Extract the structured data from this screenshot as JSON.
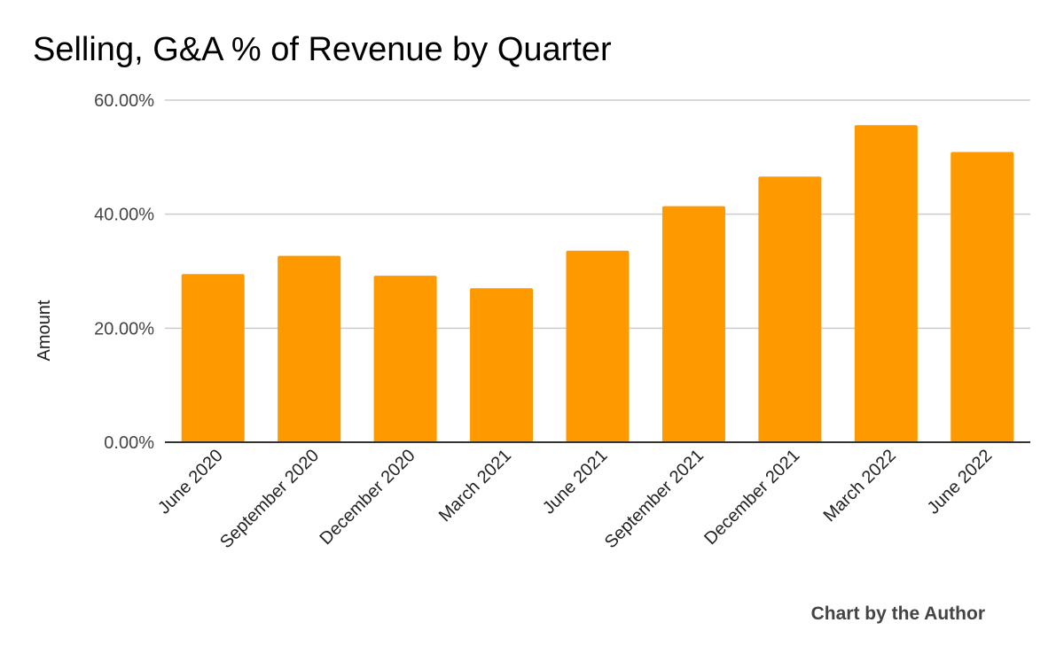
{
  "chart_data": {
    "type": "bar",
    "title": "Selling, G&A % of Revenue by Quarter",
    "xlabel": "",
    "ylabel": "Amount",
    "categories": [
      "June 2020",
      "September 2020",
      "December 2020",
      "March 2021",
      "June 2021",
      "September 2021",
      "December 2021",
      "March 2022",
      "June 2022"
    ],
    "values": [
      29.5,
      32.7,
      29.2,
      27.0,
      33.6,
      41.4,
      46.6,
      55.6,
      50.9
    ],
    "value_unit": "%",
    "ylim": [
      0,
      60
    ],
    "yticks": [
      0,
      20,
      40,
      60
    ],
    "ytick_labels": [
      "0.00%",
      "20.00%",
      "40.00%",
      "60.00%"
    ],
    "grid": true,
    "bar_color": "#ff9900",
    "grid_color": "#cccccc",
    "axis_color": "#333333"
  },
  "credit": "Chart by the Author"
}
